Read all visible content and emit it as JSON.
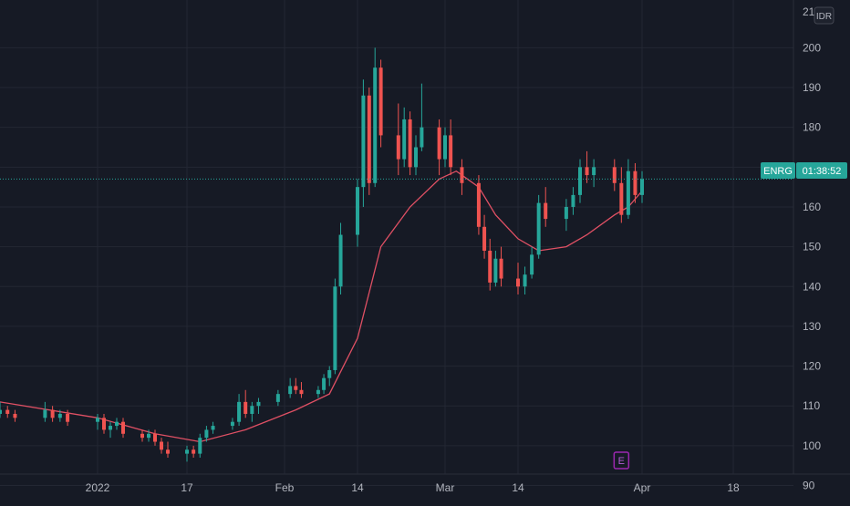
{
  "header": {
    "symbol_badge": "ENRG",
    "countdown": "01:38:52",
    "currency": "IDR"
  },
  "markers": {
    "earnings_label": "E"
  },
  "colors": {
    "background": "#161a25",
    "grid": "#232733",
    "text": "#b2b5be",
    "up": "#26a69a",
    "down": "#ef5350",
    "ma": "#e05064",
    "last_price_line": "#26a69a",
    "badge_bg": "#26a69a",
    "earnings": "#9c27b0"
  },
  "chart_data": {
    "type": "candlestick",
    "title": "",
    "y_axis": {
      "min": 86,
      "max": 212,
      "ticks": [
        90,
        100,
        110,
        120,
        130,
        140,
        150,
        160,
        170,
        180,
        190,
        200
      ],
      "top_partial_label": "21"
    },
    "x_axis": {
      "tick_labels": [
        "2022",
        "17",
        "Feb",
        "14",
        "Mar",
        "14",
        "Apr",
        "18"
      ],
      "tick_dates": [
        "2022-01-03",
        "2022-01-17",
        "2022-02-01",
        "2022-02-14",
        "2022-03-01",
        "2022-03-14",
        "2022-04-01",
        "2022-04-18"
      ]
    },
    "last_price": 167,
    "ma_line": [
      {
        "date": "2021-12-21",
        "v": 111
      },
      {
        "date": "2022-01-03",
        "v": 107
      },
      {
        "date": "2022-01-12",
        "v": 103
      },
      {
        "date": "2022-01-19",
        "v": 101
      },
      {
        "date": "2022-01-26",
        "v": 104
      },
      {
        "date": "2022-02-03",
        "v": 109
      },
      {
        "date": "2022-02-09",
        "v": 113
      },
      {
        "date": "2022-02-14",
        "v": 127
      },
      {
        "date": "2022-02-18",
        "v": 150
      },
      {
        "date": "2022-02-23",
        "v": 160
      },
      {
        "date": "2022-02-28",
        "v": 167
      },
      {
        "date": "2022-03-03",
        "v": 169
      },
      {
        "date": "2022-03-07",
        "v": 165
      },
      {
        "date": "2022-03-10",
        "v": 158
      },
      {
        "date": "2022-03-14",
        "v": 152
      },
      {
        "date": "2022-03-17",
        "v": 149
      },
      {
        "date": "2022-03-21",
        "v": 150
      },
      {
        "date": "2022-03-24",
        "v": 153
      },
      {
        "date": "2022-03-28",
        "v": 158
      },
      {
        "date": "2022-03-30",
        "v": 160
      },
      {
        "date": "2022-04-01",
        "v": 164
      }
    ],
    "candles": [
      {
        "date": "2021-12-21",
        "o": 108,
        "h": 111,
        "l": 107,
        "c": 109
      },
      {
        "date": "2021-12-22",
        "o": 109,
        "h": 110,
        "l": 107,
        "c": 108
      },
      {
        "date": "2021-12-23",
        "o": 108,
        "h": 109,
        "l": 106,
        "c": 107
      },
      {
        "date": "2021-12-27",
        "o": 107,
        "h": 111,
        "l": 106,
        "c": 109
      },
      {
        "date": "2021-12-28",
        "o": 109,
        "h": 110,
        "l": 106,
        "c": 107
      },
      {
        "date": "2021-12-29",
        "o": 107,
        "h": 109,
        "l": 106,
        "c": 108
      },
      {
        "date": "2021-12-30",
        "o": 108,
        "h": 109,
        "l": 105,
        "c": 106
      },
      {
        "date": "2022-01-03",
        "o": 106,
        "h": 108,
        "l": 104,
        "c": 107
      },
      {
        "date": "2022-01-04",
        "o": 107,
        "h": 108,
        "l": 103,
        "c": 104
      },
      {
        "date": "2022-01-05",
        "o": 104,
        "h": 106,
        "l": 102,
        "c": 105
      },
      {
        "date": "2022-01-06",
        "o": 105,
        "h": 107,
        "l": 104,
        "c": 106
      },
      {
        "date": "2022-01-07",
        "o": 106,
        "h": 107,
        "l": 102,
        "c": 103
      },
      {
        "date": "2022-01-10",
        "o": 103,
        "h": 104,
        "l": 101,
        "c": 102
      },
      {
        "date": "2022-01-11",
        "o": 102,
        "h": 104,
        "l": 101,
        "c": 103
      },
      {
        "date": "2022-01-12",
        "o": 103,
        "h": 104,
        "l": 100,
        "c": 101
      },
      {
        "date": "2022-01-13",
        "o": 101,
        "h": 102,
        "l": 98,
        "c": 99
      },
      {
        "date": "2022-01-14",
        "o": 99,
        "h": 101,
        "l": 97,
        "c": 98
      },
      {
        "date": "2022-01-17",
        "o": 98,
        "h": 100,
        "l": 96,
        "c": 99
      },
      {
        "date": "2022-01-18",
        "o": 99,
        "h": 100,
        "l": 97,
        "c": 98
      },
      {
        "date": "2022-01-19",
        "o": 98,
        "h": 103,
        "l": 97,
        "c": 102
      },
      {
        "date": "2022-01-20",
        "o": 102,
        "h": 105,
        "l": 101,
        "c": 104
      },
      {
        "date": "2022-01-21",
        "o": 104,
        "h": 106,
        "l": 103,
        "c": 105
      },
      {
        "date": "2022-01-24",
        "o": 105,
        "h": 107,
        "l": 104,
        "c": 106
      },
      {
        "date": "2022-01-25",
        "o": 106,
        "h": 113,
        "l": 105,
        "c": 111
      },
      {
        "date": "2022-01-26",
        "o": 111,
        "h": 114,
        "l": 107,
        "c": 108
      },
      {
        "date": "2022-01-27",
        "o": 108,
        "h": 111,
        "l": 106,
        "c": 110
      },
      {
        "date": "2022-01-28",
        "o": 110,
        "h": 112,
        "l": 108,
        "c": 111
      },
      {
        "date": "2022-01-31",
        "o": 111,
        "h": 114,
        "l": 110,
        "c": 113
      },
      {
        "date": "2022-02-02",
        "o": 113,
        "h": 117,
        "l": 112,
        "c": 115
      },
      {
        "date": "2022-02-03",
        "o": 115,
        "h": 117,
        "l": 113,
        "c": 114
      },
      {
        "date": "2022-02-04",
        "o": 114,
        "h": 116,
        "l": 112,
        "c": 113
      },
      {
        "date": "2022-02-07",
        "o": 113,
        "h": 115,
        "l": 112,
        "c": 114
      },
      {
        "date": "2022-02-08",
        "o": 114,
        "h": 118,
        "l": 113,
        "c": 117
      },
      {
        "date": "2022-02-09",
        "o": 117,
        "h": 120,
        "l": 115,
        "c": 119
      },
      {
        "date": "2022-02-10",
        "o": 119,
        "h": 142,
        "l": 118,
        "c": 140
      },
      {
        "date": "2022-02-11",
        "o": 140,
        "h": 156,
        "l": 138,
        "c": 153
      },
      {
        "date": "2022-02-14",
        "o": 153,
        "h": 167,
        "l": 150,
        "c": 165
      },
      {
        "date": "2022-02-15",
        "o": 165,
        "h": 192,
        "l": 160,
        "c": 188
      },
      {
        "date": "2022-02-16",
        "o": 188,
        "h": 190,
        "l": 163,
        "c": 166
      },
      {
        "date": "2022-02-17",
        "o": 166,
        "h": 200,
        "l": 165,
        "c": 195
      },
      {
        "date": "2022-02-18",
        "o": 195,
        "h": 197,
        "l": 175,
        "c": 178
      },
      {
        "date": "2022-02-21",
        "o": 178,
        "h": 186,
        "l": 168,
        "c": 172
      },
      {
        "date": "2022-02-22",
        "o": 172,
        "h": 185,
        "l": 170,
        "c": 182
      },
      {
        "date": "2022-02-23",
        "o": 182,
        "h": 184,
        "l": 168,
        "c": 170
      },
      {
        "date": "2022-02-24",
        "o": 170,
        "h": 178,
        "l": 168,
        "c": 175
      },
      {
        "date": "2022-02-25",
        "o": 175,
        "h": 191,
        "l": 174,
        "c": 180
      },
      {
        "date": "2022-02-28",
        "o": 180,
        "h": 182,
        "l": 168,
        "c": 172
      },
      {
        "date": "2022-03-01",
        "o": 172,
        "h": 180,
        "l": 170,
        "c": 178
      },
      {
        "date": "2022-03-02",
        "o": 178,
        "h": 182,
        "l": 168,
        "c": 170
      },
      {
        "date": "2022-03-04",
        "o": 170,
        "h": 172,
        "l": 163,
        "c": 166
      },
      {
        "date": "2022-03-07",
        "o": 166,
        "h": 168,
        "l": 153,
        "c": 155
      },
      {
        "date": "2022-03-08",
        "o": 155,
        "h": 158,
        "l": 147,
        "c": 149
      },
      {
        "date": "2022-03-09",
        "o": 149,
        "h": 152,
        "l": 139,
        "c": 141
      },
      {
        "date": "2022-03-10",
        "o": 141,
        "h": 149,
        "l": 140,
        "c": 147
      },
      {
        "date": "2022-03-11",
        "o": 147,
        "h": 150,
        "l": 140,
        "c": 142
      },
      {
        "date": "2022-03-14",
        "o": 142,
        "h": 146,
        "l": 138,
        "c": 140
      },
      {
        "date": "2022-03-15",
        "o": 140,
        "h": 145,
        "l": 138,
        "c": 143
      },
      {
        "date": "2022-03-16",
        "o": 143,
        "h": 150,
        "l": 142,
        "c": 148
      },
      {
        "date": "2022-03-17",
        "o": 148,
        "h": 163,
        "l": 147,
        "c": 161
      },
      {
        "date": "2022-03-18",
        "o": 161,
        "h": 165,
        "l": 155,
        "c": 157
      },
      {
        "date": "2022-03-21",
        "o": 157,
        "h": 162,
        "l": 154,
        "c": 160
      },
      {
        "date": "2022-03-22",
        "o": 160,
        "h": 165,
        "l": 158,
        "c": 163
      },
      {
        "date": "2022-03-23",
        "o": 163,
        "h": 172,
        "l": 161,
        "c": 170
      },
      {
        "date": "2022-03-24",
        "o": 170,
        "h": 174,
        "l": 166,
        "c": 168
      },
      {
        "date": "2022-03-25",
        "o": 168,
        "h": 172,
        "l": 165,
        "c": 170
      },
      {
        "date": "2022-03-28",
        "o": 170,
        "h": 172,
        "l": 164,
        "c": 166
      },
      {
        "date": "2022-03-29",
        "o": 166,
        "h": 170,
        "l": 156,
        "c": 158
      },
      {
        "date": "2022-03-30",
        "o": 158,
        "h": 172,
        "l": 157,
        "c": 169
      },
      {
        "date": "2022-03-31",
        "o": 169,
        "h": 171,
        "l": 161,
        "c": 163
      },
      {
        "date": "2022-04-01",
        "o": 163,
        "h": 169,
        "l": 161,
        "c": 167
      }
    ],
    "earnings_date": "2022-03-29"
  }
}
